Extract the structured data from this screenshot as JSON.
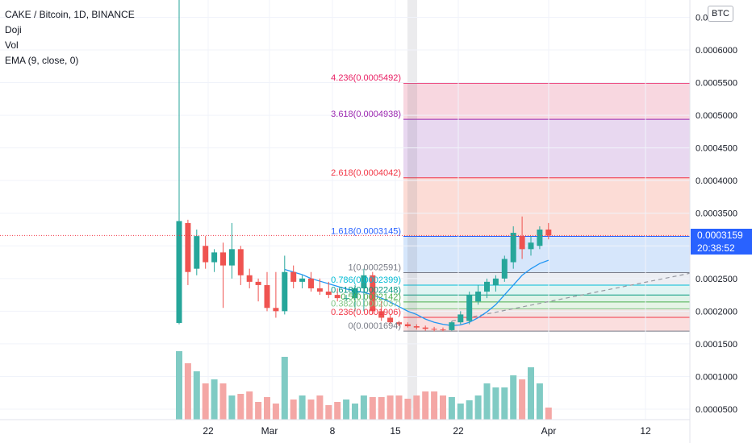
{
  "header": {
    "symbol_line": "CAKE / Bitcoin, 1D, BINANCE",
    "indicators": [
      "Doji",
      "Vol",
      "EMA (9, close, 0)"
    ],
    "currency_badge": "BTC"
  },
  "current_price": {
    "value": "0.0003159",
    "countdown": "20:38:52"
  },
  "chart_data": {
    "type": "candlestick",
    "price_axis_ticks": [
      "0.0006000",
      "0.0005500",
      "0.0005000",
      "0.0004500",
      "0.0004000",
      "0.0003500",
      "0.0003000",
      "0.0002500",
      "0.0002000",
      "0.0001500",
      "0.0001000",
      "0.0000500"
    ],
    "price_axis_top_partial": "0.0",
    "price_axis_partial_label": "0.0",
    "time_axis_ticks": [
      "22",
      "Mar",
      "8",
      "15",
      "22",
      "Apr",
      "12"
    ],
    "fibonacci": [
      {
        "label": "4.236(0.0005492)",
        "value": 0.0005492,
        "color": "#e91e63",
        "fill": "#f8d7e0"
      },
      {
        "label": "3.618(0.0004938)",
        "value": 0.0004938,
        "color": "#9c27b0",
        "fill": "#e8d8f0"
      },
      {
        "label": "2.618(0.0004042)",
        "value": 0.0004042,
        "color": "#f23645",
        "fill": "#fcdcd6"
      },
      {
        "label": "1.618(0.0003145)",
        "value": 0.0003145,
        "color": "#2962ff",
        "fill": "#d6e6fb"
      },
      {
        "label": "1(0.0002591)",
        "value": 0.0002591,
        "color": "#787b86",
        "fill": "#eceef3"
      },
      {
        "label": "0.786(0.0002399)",
        "value": 0.0002399,
        "color": "#00bcd4",
        "fill": "#e1f4f3"
      },
      {
        "label": "0.618(0.0002248)",
        "value": 0.0002248,
        "color": "#089981",
        "fill": "#e0f3e8"
      },
      {
        "label": "0.5(0.0002142)",
        "value": 0.0002142,
        "color": "#4caf50",
        "fill": "#e6f4e6"
      },
      {
        "label": "0.382(0.0002037)",
        "value": 0.0002037,
        "color": "#81c784",
        "fill": "#f3e4e4"
      },
      {
        "label": "0.236(0.0001906)",
        "value": 0.0001906,
        "color": "#f23645",
        "fill": "#fbdede"
      },
      {
        "label": "0(0.0001694)",
        "value": 0.0001694,
        "color": "#787b86",
        "fill": ""
      }
    ],
    "candles": [
      {
        "o": 0.000182,
        "h": 0.000695,
        "l": 0.00018,
        "c": 0.000338
      },
      {
        "o": 0.000335,
        "h": 0.00034,
        "l": 0.00024,
        "c": 0.00026
      },
      {
        "o": 0.000265,
        "h": 0.000325,
        "l": 0.000255,
        "c": 0.000315
      },
      {
        "o": 0.0003,
        "h": 0.000315,
        "l": 0.000265,
        "c": 0.000275
      },
      {
        "o": 0.000275,
        "h": 0.000295,
        "l": 0.00026,
        "c": 0.00029
      },
      {
        "o": 0.00029,
        "h": 0.000305,
        "l": 0.000205,
        "c": 0.00027
      },
      {
        "o": 0.00027,
        "h": 0.000335,
        "l": 0.00025,
        "c": 0.000295
      },
      {
        "o": 0.000295,
        "h": 0.0003,
        "l": 0.00024,
        "c": 0.000255
      },
      {
        "o": 0.000255,
        "h": 0.000265,
        "l": 0.000235,
        "c": 0.000245
      },
      {
        "o": 0.000245,
        "h": 0.00025,
        "l": 0.000215,
        "c": 0.00024
      },
      {
        "o": 0.00024,
        "h": 0.00026,
        "l": 0.0002,
        "c": 0.000205
      },
      {
        "o": 0.000205,
        "h": 0.00026,
        "l": 0.00019,
        "c": 0.0002
      },
      {
        "o": 0.0002,
        "h": 0.000285,
        "l": 0.000195,
        "c": 0.00026
      },
      {
        "o": 0.00026,
        "h": 0.00027,
        "l": 0.000235,
        "c": 0.000245
      },
      {
        "o": 0.000245,
        "h": 0.000255,
        "l": 0.000235,
        "c": 0.00025
      },
      {
        "o": 0.00025,
        "h": 0.00026,
        "l": 0.00023,
        "c": 0.000235
      },
      {
        "o": 0.000235,
        "h": 0.00025,
        "l": 0.000225,
        "c": 0.00023
      },
      {
        "o": 0.00023,
        "h": 0.000245,
        "l": 0.00022,
        "c": 0.000225
      },
      {
        "o": 0.000225,
        "h": 0.000235,
        "l": 0.000215,
        "c": 0.00022
      },
      {
        "o": 0.00022,
        "h": 0.000225,
        "l": 0.000215,
        "c": 0.00022
      },
      {
        "o": 0.00022,
        "h": 0.00024,
        "l": 0.0002,
        "c": 0.000235
      },
      {
        "o": 0.000235,
        "h": 0.000265,
        "l": 0.0002,
        "c": 0.000255
      },
      {
        "o": 0.000255,
        "h": 0.00026,
        "l": 0.000195,
        "c": 0.0002
      },
      {
        "o": 0.0002,
        "h": 0.000215,
        "l": 0.000185,
        "c": 0.00019
      },
      {
        "o": 0.00019,
        "h": 0.000195,
        "l": 0.00018,
        "c": 0.000183
      },
      {
        "o": 0.000183,
        "h": 0.000185,
        "l": 0.000177,
        "c": 0.00018
      },
      {
        "o": 0.00018,
        "h": 0.000183,
        "l": 0.000175,
        "c": 0.000177
      },
      {
        "o": 0.000177,
        "h": 0.00018,
        "l": 0.000172,
        "c": 0.000175
      },
      {
        "o": 0.000175,
        "h": 0.000178,
        "l": 0.00017,
        "c": 0.000173
      },
      {
        "o": 0.000173,
        "h": 0.000176,
        "l": 0.000169,
        "c": 0.000172
      },
      {
        "o": 0.000172,
        "h": 0.000175,
        "l": 0.000169,
        "c": 0.000171
      },
      {
        "o": 0.000171,
        "h": 0.000185,
        "l": 0.00017,
        "c": 0.000183
      },
      {
        "o": 0.000183,
        "h": 0.0002,
        "l": 0.00018,
        "c": 0.000195
      },
      {
        "o": 0.000185,
        "h": 0.00023,
        "l": 0.00018,
        "c": 0.000225
      },
      {
        "o": 0.000215,
        "h": 0.00024,
        "l": 0.00021,
        "c": 0.00023
      },
      {
        "o": 0.00023,
        "h": 0.00025,
        "l": 0.00022,
        "c": 0.000245
      },
      {
        "o": 0.00024,
        "h": 0.000255,
        "l": 0.00023,
        "c": 0.00025
      },
      {
        "o": 0.00025,
        "h": 0.000285,
        "l": 0.000245,
        "c": 0.00028
      },
      {
        "o": 0.000275,
        "h": 0.00033,
        "l": 0.000265,
        "c": 0.00032
      },
      {
        "o": 0.000315,
        "h": 0.000345,
        "l": 0.00028,
        "c": 0.000295
      },
      {
        "o": 0.000295,
        "h": 0.000315,
        "l": 0.000285,
        "c": 0.000305
      },
      {
        "o": 0.0003,
        "h": 0.00033,
        "l": 0.000295,
        "c": 0.000325
      },
      {
        "o": 0.000325,
        "h": 0.000335,
        "l": 0.00031,
        "c": 0.0003159
      }
    ],
    "volume": [
      0.85,
      0.7,
      0.6,
      0.45,
      0.5,
      0.45,
      0.3,
      0.32,
      0.35,
      0.22,
      0.28,
      0.2,
      0.78,
      0.25,
      0.3,
      0.25,
      0.3,
      0.18,
      0.22,
      0.25,
      0.2,
      0.3,
      0.28,
      0.28,
      0.3,
      0.3,
      0.26,
      0.3,
      0.35,
      0.35,
      0.3,
      0.28,
      0.2,
      0.24,
      0.3,
      0.45,
      0.4,
      0.4,
      0.55,
      0.5,
      0.65,
      0.45,
      0.15
    ],
    "ema": [
      null,
      null,
      null,
      null,
      null,
      null,
      null,
      null,
      null,
      null,
      null,
      null,
      0.000264,
      0.00026,
      0.000256,
      0.00025,
      0.000246,
      0.000242,
      0.000238,
      0.000234,
      0.000231,
      0.000229,
      0.000225,
      0.00022,
      0.000214,
      0.000207,
      0.0002,
      0.000195,
      0.000188,
      0.000183,
      0.00018,
      0.000178,
      0.000179,
      0.000183,
      0.00019,
      0.000199,
      0.00021,
      0.000225,
      0.00024,
      0.000255,
      0.000265,
      0.000273,
      0.000278
    ],
    "colors": {
      "up": "#26a69a",
      "down": "#ef5350",
      "ema": "#2196f3",
      "volume_up": "#80cbc4",
      "volume_down": "#f4a7a5"
    }
  }
}
